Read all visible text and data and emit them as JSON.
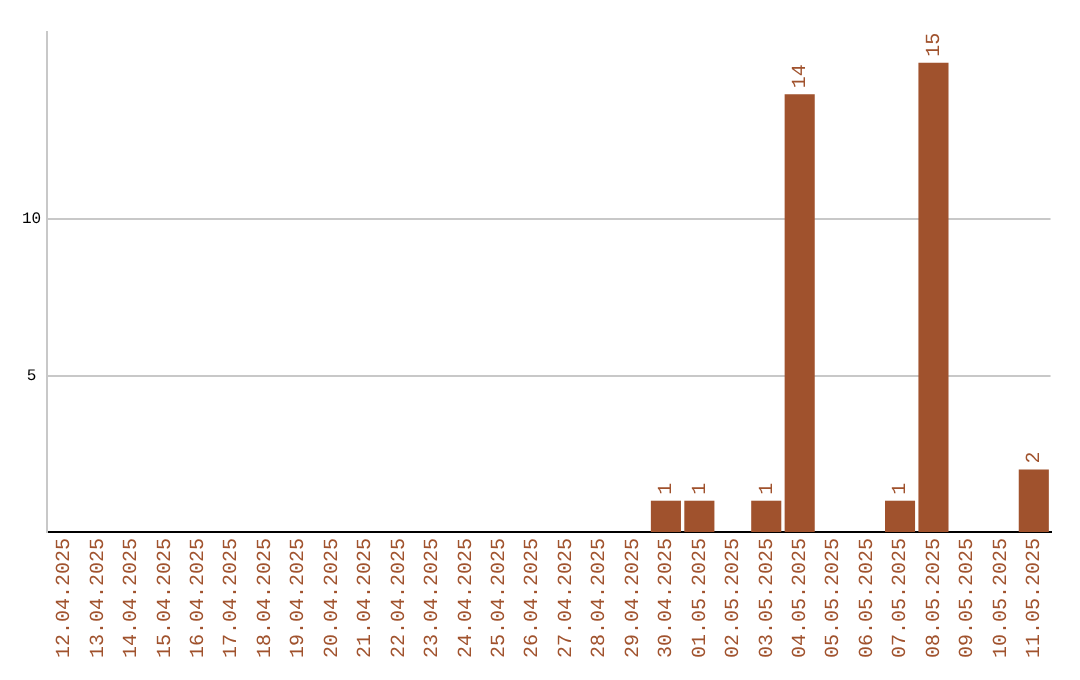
{
  "chart_data": {
    "type": "bar",
    "categories": [
      "12.04.2025",
      "13.04.2025",
      "14.04.2025",
      "15.04.2025",
      "16.04.2025",
      "17.04.2025",
      "18.04.2025",
      "19.04.2025",
      "20.04.2025",
      "21.04.2025",
      "22.04.2025",
      "23.04.2025",
      "24.04.2025",
      "25.04.2025",
      "26.04.2025",
      "27.04.2025",
      "28.04.2025",
      "29.04.2025",
      "30.04.2025",
      "01.05.2025",
      "02.05.2025",
      "03.05.2025",
      "04.05.2025",
      "05.05.2025",
      "06.05.2025",
      "07.05.2025",
      "08.05.2025",
      "09.05.2025",
      "10.05.2025",
      "11.05.2025"
    ],
    "values": [
      0,
      0,
      0,
      0,
      0,
      0,
      0,
      0,
      0,
      0,
      0,
      0,
      0,
      0,
      0,
      0,
      0,
      0,
      1,
      1,
      0,
      1,
      14,
      0,
      0,
      1,
      15,
      0,
      0,
      2
    ],
    "value_labels": [
      null,
      null,
      null,
      null,
      null,
      null,
      null,
      null,
      null,
      null,
      null,
      null,
      null,
      null,
      null,
      null,
      null,
      null,
      "1",
      "1",
      null,
      "1",
      "14",
      null,
      null,
      "1",
      "15",
      null,
      null,
      "2"
    ],
    "color": "#a0522d",
    "ylim": [
      0,
      16
    ],
    "yticks": [
      5,
      10
    ],
    "grid": "y",
    "legend": false
  }
}
